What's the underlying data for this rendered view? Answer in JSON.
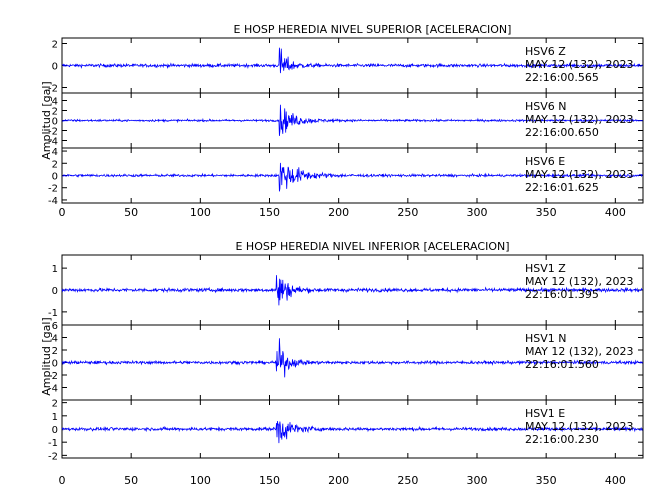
{
  "chart_data": [
    {
      "type": "line",
      "title": "E HOSP HEREDIA NIVEL SUPERIOR [ACELERACION]",
      "ylabel": "Amplitud [gal]",
      "xlim": [
        0,
        420
      ],
      "x_ticks": [
        0,
        50,
        100,
        150,
        200,
        250,
        300,
        350,
        400
      ],
      "color": "#0000ff",
      "series": [
        {
          "name": "HSV6 Z",
          "date": "MAY 12 (132), 2023",
          "time": "22:16:00.565",
          "ylim": [
            -2.5,
            2.5
          ],
          "y_ticks": [
            -2,
            0,
            2
          ],
          "noise": 0.18,
          "peak": 2.2,
          "onset": 157,
          "decay": 6
        },
        {
          "name": "HSV6 N",
          "date": "MAY 12 (132), 2023",
          "time": "22:16:00.650",
          "ylim": [
            -5.5,
            5.5
          ],
          "y_ticks": [
            -4,
            -2,
            0,
            2,
            4
          ],
          "noise": 0.25,
          "peak": 4.2,
          "onset": 157,
          "decay": 10
        },
        {
          "name": "HSV6 E",
          "date": "MAY 12 (132), 2023",
          "time": "22:16:01.625",
          "ylim": [
            -4.5,
            4.5
          ],
          "y_ticks": [
            -4,
            -2,
            0,
            2,
            4
          ],
          "noise": 0.25,
          "peak": 4.3,
          "onset": 157,
          "decay": 12
        }
      ]
    },
    {
      "type": "line",
      "title": "E HOSP HEREDIA NIVEL INFERIOR [ACELERACION]",
      "ylabel": "Amplitud [gal]",
      "xlim": [
        0,
        420
      ],
      "x_ticks": [
        0,
        50,
        100,
        150,
        200,
        250,
        300,
        350,
        400
      ],
      "color": "#0000ff",
      "series": [
        {
          "name": "HSV1 Z",
          "date": "MAY 12 (132), 2023",
          "time": "22:16:01.395",
          "ylim": [
            -1.6,
            1.6
          ],
          "y_ticks": [
            -1,
            0,
            1
          ],
          "noise": 0.1,
          "peak": 1.45,
          "onset": 155,
          "decay": 7
        },
        {
          "name": "HSV1 N",
          "date": "MAY 12 (132), 2023",
          "time": "22:16:01.560",
          "ylim": [
            -6,
            6
          ],
          "y_ticks": [
            -4,
            -2,
            0,
            2,
            4,
            6
          ],
          "noise": 0.3,
          "peak": 5.5,
          "onset": 155,
          "decay": 6
        },
        {
          "name": "HSV1 E",
          "date": "MAY 12 (132), 2023",
          "time": "22:16:00.230",
          "ylim": [
            -2.2,
            2.2
          ],
          "y_ticks": [
            -2,
            -1,
            0,
            1,
            2
          ],
          "noise": 0.15,
          "peak": 2.0,
          "onset": 155,
          "decay": 8
        }
      ]
    }
  ]
}
